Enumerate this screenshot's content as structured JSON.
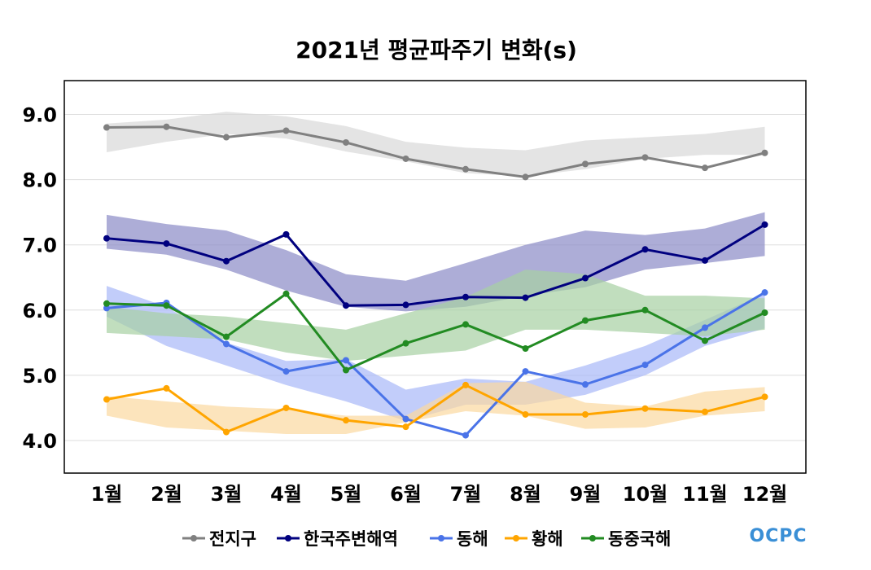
{
  "chart_data": {
    "type": "line",
    "title": "2021년 평균파주기 변화(s)",
    "xlabel": "",
    "ylabel": "",
    "categories": [
      "1월",
      "2월",
      "3월",
      "4월",
      "5월",
      "6월",
      "7월",
      "8월",
      "9월",
      "10월",
      "11월",
      "12월"
    ],
    "yticks": [
      "4.0",
      "5.0",
      "6.0",
      "7.0",
      "8.0",
      "9.0"
    ],
    "ylim": [
      3.5,
      9.5
    ],
    "grid": true,
    "legend_position": "bottom",
    "series": [
      {
        "name": "전지구",
        "color": "#808080",
        "band_color": "#d9d9d9",
        "values": [
          8.8,
          8.81,
          8.65,
          8.75,
          8.57,
          8.32,
          8.16,
          8.04,
          8.24,
          8.34,
          8.18,
          8.41
        ],
        "band_low": [
          8.42,
          8.58,
          8.7,
          8.63,
          8.43,
          8.28,
          8.1,
          8.05,
          8.16,
          8.32,
          8.38,
          8.38
        ],
        "band_high": [
          8.86,
          8.92,
          9.04,
          8.97,
          8.82,
          8.58,
          8.49,
          8.45,
          8.6,
          8.65,
          8.7,
          8.81
        ]
      },
      {
        "name": "한국주변해역",
        "color": "#00007f",
        "band_color": "#8a8ac6",
        "values": [
          7.1,
          7.02,
          6.75,
          7.16,
          6.07,
          6.08,
          6.2,
          6.19,
          6.49,
          6.93,
          6.76,
          7.31
        ],
        "band_low": [
          6.94,
          6.85,
          6.62,
          6.3,
          6.05,
          5.98,
          6.05,
          6.22,
          6.35,
          6.62,
          6.72,
          6.83
        ],
        "band_high": [
          7.46,
          7.32,
          7.22,
          6.92,
          6.55,
          6.45,
          6.72,
          7.0,
          7.22,
          7.15,
          7.25,
          7.5
        ]
      },
      {
        "name": "동해",
        "color": "#4a73e8",
        "band_color": "#a8b8f8",
        "values": [
          6.03,
          6.11,
          5.48,
          5.06,
          5.23,
          4.33,
          4.08,
          5.06,
          4.86,
          5.16,
          5.73,
          6.27
        ],
        "band_low": [
          5.9,
          5.45,
          5.15,
          4.85,
          4.6,
          4.3,
          4.55,
          4.55,
          4.7,
          5.0,
          5.45,
          5.72
        ],
        "band_high": [
          6.37,
          6.05,
          5.5,
          5.22,
          5.25,
          4.78,
          4.95,
          4.9,
          5.15,
          5.45,
          5.85,
          6.25
        ]
      },
      {
        "name": "황해",
        "color": "#ffa500",
        "band_color": "#fbd9a0",
        "values": [
          4.63,
          4.8,
          4.13,
          4.5,
          4.31,
          4.21,
          4.85,
          4.4,
          4.4,
          4.49,
          4.44,
          4.67
        ],
        "band_low": [
          4.38,
          4.2,
          4.15,
          4.1,
          4.1,
          4.28,
          4.45,
          4.38,
          4.18,
          4.2,
          4.38,
          4.45
        ],
        "band_high": [
          4.68,
          4.6,
          4.52,
          4.48,
          4.38,
          4.38,
          4.88,
          4.9,
          4.58,
          4.52,
          4.75,
          4.82
        ]
      },
      {
        "name": "동중국해",
        "color": "#228b22",
        "band_color": "#a7d0a2",
        "values": [
          6.1,
          6.07,
          5.59,
          6.25,
          5.08,
          5.49,
          5.78,
          5.41,
          5.84,
          6.0,
          5.53,
          5.96
        ],
        "band_low": [
          5.65,
          5.6,
          5.55,
          5.35,
          5.22,
          5.3,
          5.38,
          5.7,
          5.7,
          5.65,
          5.6,
          5.7
        ],
        "band_high": [
          6.05,
          5.95,
          5.9,
          5.8,
          5.7,
          5.95,
          6.2,
          6.62,
          6.55,
          6.22,
          6.22,
          6.18
        ]
      }
    ]
  },
  "logo": {
    "text": "OCPC"
  }
}
